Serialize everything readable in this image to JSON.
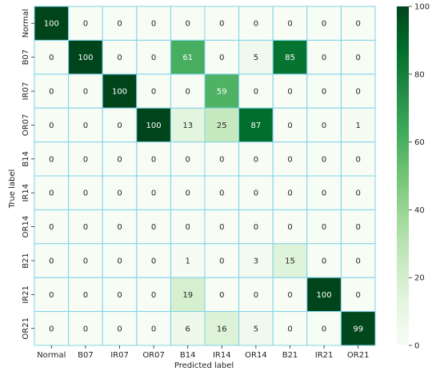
{
  "chart_data": {
    "type": "heatmap",
    "title": "",
    "xlabel": "Predicted label",
    "ylabel": "True label",
    "x_categories": [
      "Normal",
      "B07",
      "IR07",
      "OR07",
      "B14",
      "IR14",
      "OR14",
      "B21",
      "IR21",
      "OR21"
    ],
    "y_categories": [
      "Normal",
      "B07",
      "IR07",
      "OR07",
      "B14",
      "IR14",
      "OR14",
      "B21",
      "IR21",
      "OR21"
    ],
    "values": [
      [
        100,
        0,
        0,
        0,
        0,
        0,
        0,
        0,
        0,
        0
      ],
      [
        0,
        100,
        0,
        0,
        61,
        0,
        5,
        85,
        0,
        0
      ],
      [
        0,
        0,
        100,
        0,
        0,
        59,
        0,
        0,
        0,
        0
      ],
      [
        0,
        0,
        0,
        100,
        13,
        25,
        87,
        0,
        0,
        1
      ],
      [
        0,
        0,
        0,
        0,
        0,
        0,
        0,
        0,
        0,
        0
      ],
      [
        0,
        0,
        0,
        0,
        0,
        0,
        0,
        0,
        0,
        0
      ],
      [
        0,
        0,
        0,
        0,
        0,
        0,
        0,
        0,
        0,
        0
      ],
      [
        0,
        0,
        0,
        0,
        1,
        0,
        3,
        15,
        0,
        0
      ],
      [
        0,
        0,
        0,
        0,
        19,
        0,
        0,
        0,
        100,
        0
      ],
      [
        0,
        0,
        0,
        0,
        6,
        16,
        5,
        0,
        0,
        99
      ]
    ],
    "colorbar": {
      "min": 0,
      "max": 100,
      "ticks": [
        0,
        20,
        40,
        60,
        80,
        100
      ]
    },
    "colormap": "Greens",
    "grid_line_color": "#7fd3e6"
  }
}
